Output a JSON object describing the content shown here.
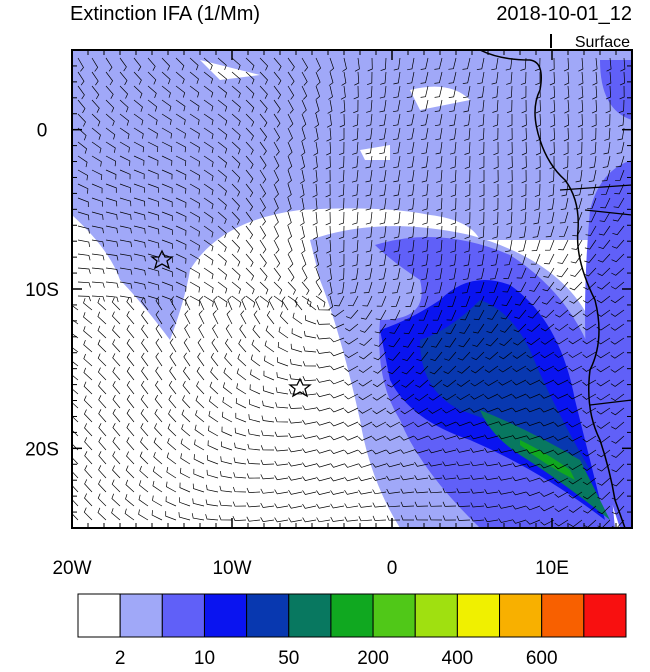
{
  "header": {
    "title": "Extinction IFA (1/Mm)",
    "time": "2018-10-01_12",
    "level": "Surface"
  },
  "map": {
    "lon_range": [
      -20,
      15
    ],
    "lat_range": [
      5,
      -25
    ],
    "lat_ticks": [
      {
        "value": 0,
        "label": "0"
      },
      {
        "value": -10,
        "label": "10S"
      },
      {
        "value": -20,
        "label": "20S"
      }
    ],
    "lon_ticks": [
      {
        "value": -20,
        "label": "20W"
      },
      {
        "value": -10,
        "label": "10W"
      },
      {
        "value": 0,
        "label": "0"
      },
      {
        "value": 10,
        "label": "10E"
      }
    ]
  },
  "colorbar": {
    "colors": [
      "#ffffff",
      "#a0a8f8",
      "#6060f8",
      "#0a14f0",
      "#0838b0",
      "#087860",
      "#10a820",
      "#50c818",
      "#a0e010",
      "#f0f000",
      "#f8b000",
      "#f86000",
      "#f81010"
    ],
    "labels": [
      "2",
      "10",
      "50",
      "200",
      "400",
      "600"
    ]
  }
}
